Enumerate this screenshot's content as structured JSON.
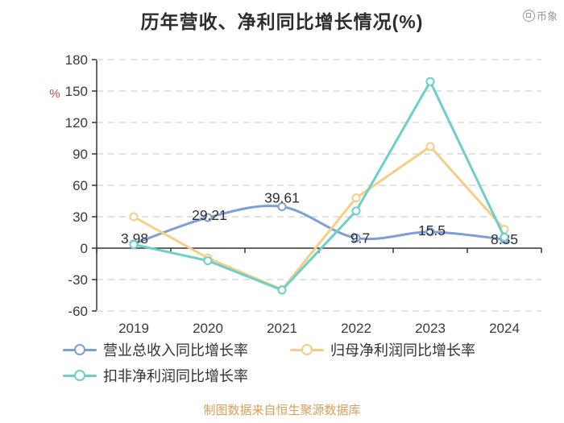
{
  "title": "历年营收、净利同比增长情况(%)",
  "watermark": "币象",
  "footer": "制图数据来自恒生聚源数据库",
  "chart_data": {
    "type": "line",
    "title": "历年营收、净利同比增长情况(%)",
    "categories": [
      "2019",
      "2020",
      "2021",
      "2022",
      "2023",
      "2024"
    ],
    "xlabel": "",
    "ylabel": "%",
    "ylabel_color": "#c74a4a",
    "ylim": [
      -60,
      180
    ],
    "ytick_step": 30,
    "grid": "horizontal dashed",
    "legend_position": "bottom",
    "series": [
      {
        "name": "营业总收入同比增长率",
        "color": "#7e9fd6",
        "smooth": true,
        "values": [
          3.98,
          29.21,
          39.61,
          9.7,
          15.5,
          8.35
        ],
        "labels": [
          "3.98",
          "29.21",
          "39.61",
          "9.7",
          "15.5",
          "8.35"
        ],
        "label_offsets": [
          [
            1,
            -7
          ],
          [
            2,
            -3
          ],
          [
            0,
            -11
          ],
          [
            5,
            0
          ],
          [
            2,
            -2
          ],
          [
            0,
            0
          ]
        ]
      },
      {
        "name": "归母净利润同比增长率",
        "color": "#f6cd85",
        "smooth": false,
        "values": [
          30,
          -9.5,
          -39.5,
          48,
          97,
          18
        ]
      },
      {
        "name": "扣非净利润同比增长率",
        "color": "#6dd0c8",
        "smooth": false,
        "values": [
          3.5,
          -12,
          -40,
          35.5,
          159,
          10.5
        ]
      }
    ]
  }
}
